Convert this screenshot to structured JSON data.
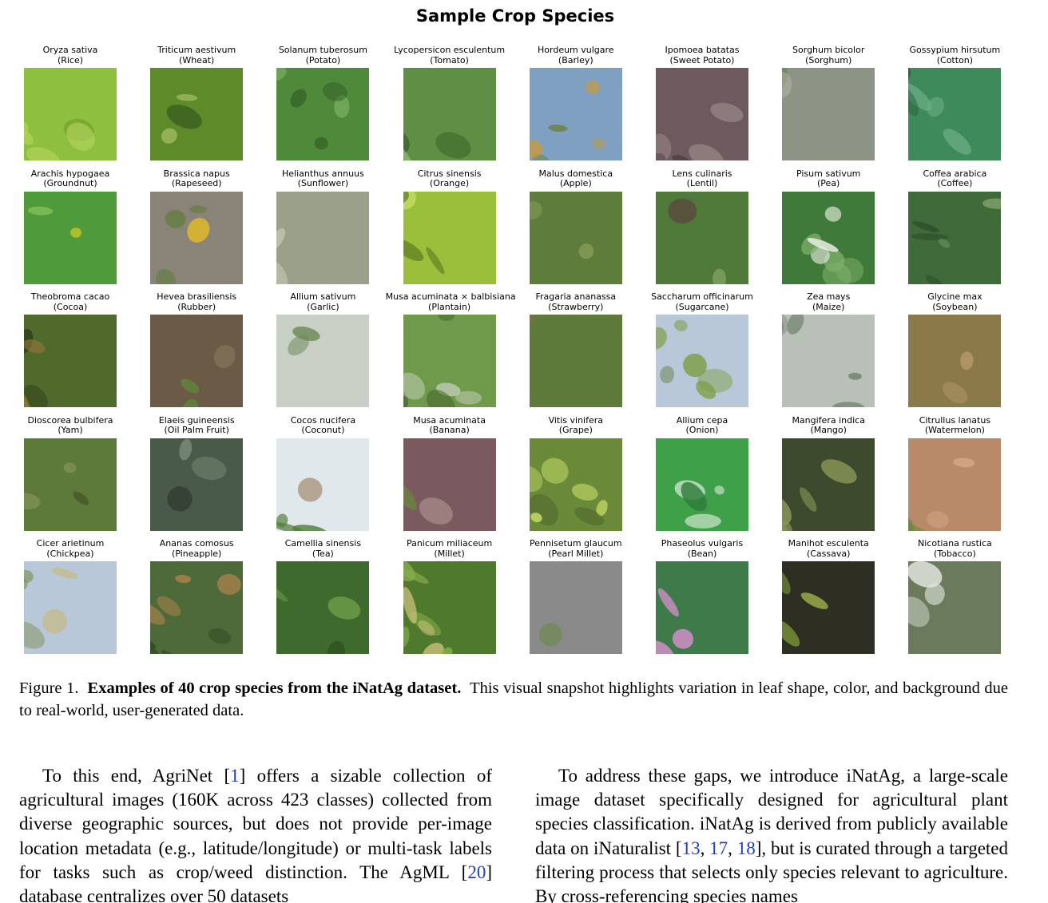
{
  "figure": {
    "title": "Sample Crop Species",
    "species": [
      {
        "latin": "Oryza sativa",
        "common": "(Rice)",
        "icon": "rice-field-photo",
        "colors": [
          "#8fbf3e",
          "#b6d660",
          "#6f9c2c"
        ]
      },
      {
        "latin": "Triticum aestivum",
        "common": "(Wheat)",
        "icon": "wheat-grass-photo",
        "colors": [
          "#5e8a2a",
          "#a9c26a",
          "#3b5f1d"
        ]
      },
      {
        "latin": "Solanum tuberosum",
        "common": "(Potato)",
        "icon": "potato-leaves-photo",
        "colors": [
          "#4f8a3a",
          "#86b86a",
          "#2f5a24"
        ]
      },
      {
        "latin": "Lycopersicon esculentum",
        "common": "(Tomato)",
        "icon": "tomato-leaves-photo",
        "colors": [
          "#5f8f45",
          "#9cc27a",
          "#3c6328"
        ]
      },
      {
        "latin": "Hordeum vulgare",
        "common": "(Barley)",
        "icon": "barley-field-photo",
        "colors": [
          "#7fa0c0",
          "#c79a3e",
          "#6b7d33"
        ]
      },
      {
        "latin": "Ipomoea batatas",
        "common": "(Sweet Potato)",
        "icon": "sweet-potato-leaves-photo",
        "colors": [
          "#6e5a5e",
          "#9b8a8a",
          "#4a3e42"
        ]
      },
      {
        "latin": "Sorghum bicolor",
        "common": "(Sorghum)",
        "icon": "sorghum-plant-photo",
        "colors": [
          "#8e9485",
          "#4f7e3a",
          "#b9bcb0"
        ]
      },
      {
        "latin": "Gossypium hirsutum",
        "common": "(Cotton)",
        "icon": "cotton-leaves-photo",
        "colors": [
          "#3f8a5a",
          "#6fb08a",
          "#2a5e3d"
        ]
      },
      {
        "latin": "Arachis hypogaea",
        "common": "(Groundnut)",
        "icon": "groundnut-plant-photo",
        "colors": [
          "#4f9a3a",
          "#86c25a",
          "#e8d020"
        ]
      },
      {
        "latin": "Brassica napus",
        "common": "(Rapeseed)",
        "icon": "rapeseed-plant-photo",
        "colors": [
          "#8a8478",
          "#5e7d3a",
          "#e8c020"
        ]
      },
      {
        "latin": "Helianthus annuus",
        "common": "(Sunflower)",
        "icon": "sunflower-head-photo",
        "colors": [
          "#9aa08a",
          "#c4c6b4",
          "#6e5a46"
        ]
      },
      {
        "latin": "Citrus sinensis",
        "common": "(Orange)",
        "icon": "orange-leaves-photo",
        "colors": [
          "#9abf3a",
          "#c8dc6a",
          "#5e7d22"
        ]
      },
      {
        "latin": "Malus domestica",
        "common": "(Apple)",
        "icon": "apple-shrub-photo",
        "colors": [
          "#5f7d3a",
          "#8aa05a",
          "#7a4a3a"
        ]
      },
      {
        "latin": "Lens culinaris",
        "common": "(Lentil)",
        "icon": "lentil-hand-photo",
        "colors": [
          "#4f7a3a",
          "#7fa060",
          "#5a4a3e"
        ]
      },
      {
        "latin": "Pisum sativum",
        "common": "(Pea)",
        "icon": "pea-plant-photo",
        "colors": [
          "#3f7a3a",
          "#7fb06a",
          "#e8efe0"
        ]
      },
      {
        "latin": "Coffea arabica",
        "common": "(Coffee)",
        "icon": "coffee-leaves-photo",
        "colors": [
          "#3f6a3a",
          "#7fa06a",
          "#2a4a28"
        ]
      },
      {
        "latin": "Theobroma cacao",
        "common": "(Cocoa)",
        "icon": "cocoa-pod-photo",
        "colors": [
          "#4f6a2a",
          "#9a7a3a",
          "#2e3e1a"
        ]
      },
      {
        "latin": "Hevea brasiliensis",
        "common": "(Rubber)",
        "icon": "rubber-seedling-photo",
        "colors": [
          "#6a5a46",
          "#5f8a3a",
          "#8a7a5e"
        ]
      },
      {
        "latin": "Allium sativum",
        "common": "(Garlic)",
        "icon": "garlic-flower-photo",
        "colors": [
          "#c8cfc4",
          "#6e8a5a",
          "#e0c0b0"
        ]
      },
      {
        "latin": "Musa acuminata × balbisiana",
        "common": "(Plantain)",
        "icon": "plantain-plant-photo",
        "colors": [
          "#6f9a4a",
          "#c4cfbc",
          "#3f5e2a"
        ]
      },
      {
        "latin": "Fragaria ananassa",
        "common": "(Strawberry)",
        "icon": "strawberry-leaves-photo",
        "colors": [
          "#5e7a3a",
          "#8a6a4a",
          "#3e5a28"
        ]
      },
      {
        "latin": "Saccharum officinarum",
        "common": "(Sugarcane)",
        "icon": "sugarcane-landscape-photo",
        "colors": [
          "#b8c8d8",
          "#7fa04a",
          "#5e7a3a"
        ]
      },
      {
        "latin": "Zea mays",
        "common": "(Maize)",
        "icon": "maize-tassel-photo",
        "colors": [
          "#b8c0b8",
          "#4f6a4a",
          "#7a8a7a"
        ]
      },
      {
        "latin": "Glycine max",
        "common": "(Soybean)",
        "icon": "soybean-plant-photo",
        "colors": [
          "#8a7a4a",
          "#b89a6a",
          "#5e6a3a"
        ]
      },
      {
        "latin": "Dioscorea bulbifera",
        "common": "(Yam)",
        "icon": "yam-vine-photo",
        "colors": [
          "#5e7a3a",
          "#8a9a5a",
          "#3e4a22"
        ]
      },
      {
        "latin": "Elaeis guineensis",
        "common": "(Oil Palm Fruit)",
        "icon": "oil-palm-photo",
        "colors": [
          "#4a5a4a",
          "#7a8a7a",
          "#2e3a2e"
        ]
      },
      {
        "latin": "Cocos nucifera",
        "common": "(Coconut)",
        "icon": "coconut-palms-photo",
        "colors": [
          "#e0e8ec",
          "#4f7a3a",
          "#9a7a5a"
        ]
      },
      {
        "latin": "Musa acuminata",
        "common": "(Banana)",
        "icon": "banana-flower-photo",
        "colors": [
          "#7a5a5e",
          "#a88a8a",
          "#6a8a3a"
        ]
      },
      {
        "latin": "Vitis vinifera",
        "common": "(Grape)",
        "icon": "grape-vine-photo",
        "colors": [
          "#6a8a3a",
          "#c8dc6a",
          "#4a5e2a"
        ]
      },
      {
        "latin": "Allium cepa",
        "common": "(Onion)",
        "icon": "onion-flower-photo",
        "colors": [
          "#3fa04a",
          "#e0f0e0",
          "#2e7a3a"
        ]
      },
      {
        "latin": "Mangifera indica",
        "common": "(Mango)",
        "icon": "mango-flowers-photo",
        "colors": [
          "#3e4a2e",
          "#8a9a5a",
          "#c8c07a"
        ]
      },
      {
        "latin": "Citrullus lanatus",
        "common": "(Watermelon)",
        "icon": "watermelon-vine-photo",
        "colors": [
          "#b88a6a",
          "#6a8a3a",
          "#d8a88a"
        ]
      },
      {
        "latin": "Cicer arietinum",
        "common": "(Chickpea)",
        "icon": "chickpea-field-photo",
        "colors": [
          "#b8c8d8",
          "#7a8a4a",
          "#c8b870"
        ]
      },
      {
        "latin": "Ananas comosus",
        "common": "(Pineapple)",
        "icon": "pineapple-plant-photo",
        "colors": [
          "#4f6a3a",
          "#a8824a",
          "#2e4a22"
        ]
      },
      {
        "latin": "Camellia sinensis",
        "common": "(Tea)",
        "icon": "tea-leaves-photo",
        "colors": [
          "#3f6a2e",
          "#6fa04a",
          "#2a4a1e"
        ]
      },
      {
        "latin": "Panicum miliaceum",
        "common": "(Millet)",
        "icon": "millet-plant-photo",
        "colors": [
          "#4f7a2e",
          "#8ab04a",
          "#c8c07a"
        ]
      },
      {
        "latin": "Pennisetum glaucum",
        "common": "(Pearl Millet)",
        "icon": "pearl-millet-photo",
        "colors": [
          "#8a8a8a",
          "#5e4a4e",
          "#6a8a4a"
        ]
      },
      {
        "latin": "Phaseolus vulgaris",
        "common": "(Bean)",
        "icon": "bean-flowers-photo",
        "colors": [
          "#3f7a4a",
          "#d890d0",
          "#2a5a35"
        ]
      },
      {
        "latin": "Manihot esculenta",
        "common": "(Cassava)",
        "icon": "cassava-leaves-photo",
        "colors": [
          "#2e2e22",
          "#8ab03a",
          "#c8e05a"
        ]
      },
      {
        "latin": "Nicotiana rustica",
        "common": "(Tobacco)",
        "icon": "tobacco-leaves-photo",
        "colors": [
          "#6a7a5a",
          "#e0e4dc",
          "#9aa08a"
        ]
      }
    ]
  },
  "caption": {
    "label": "Figure 1.",
    "bold": "Examples of 40 crop species from the iNatAg dataset.",
    "text": "This visual snapshot highlights variation in leaf shape, color, and background due to real-world, user-generated data."
  },
  "body": {
    "left": {
      "t1": "To this end, AgriNet [",
      "c1": "1",
      "t2": "] offers a sizable collection of agricultural images (160K across 423 classes) collected from diverse geographic sources, but does not provide per-image location metadata (e.g., latitude/longitude) or multi-task labels for tasks such as crop/weed distinction. The AgML [",
      "c2": "20",
      "t3": "] database centralizes over 50 datasets"
    },
    "right": {
      "t1": "To address these gaps, we introduce iNatAg, a large-scale image dataset specifically designed for agricultural plant species classification. iNatAg is derived from publicly available data on iNaturalist [",
      "c1": "13",
      "s1": ", ",
      "c2": "17",
      "s2": ", ",
      "c3": "18",
      "t2": "], but is curated through a targeted filtering process that selects only species relevant to agriculture. By cross-referencing species names"
    }
  }
}
